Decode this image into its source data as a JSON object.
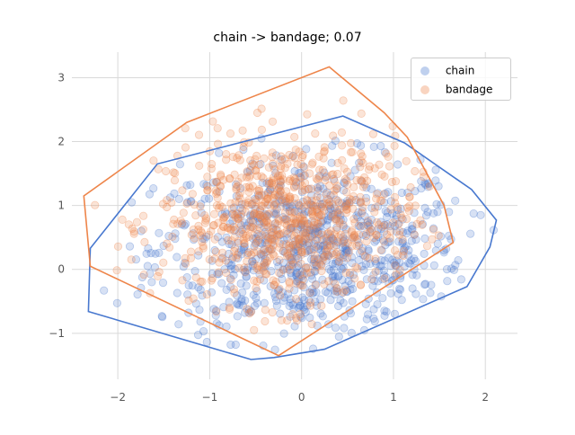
{
  "chart_data": {
    "type": "scatter",
    "title": "chain -> bandage; 0.07",
    "xlabel": "",
    "ylabel": "",
    "xlim": [
      -2.5,
      2.35
    ],
    "ylim": [
      -1.72,
      3.4
    ],
    "x_ticks": [
      -2,
      -1,
      0,
      1,
      2
    ],
    "y_ticks": [
      -1,
      0,
      1,
      2,
      3
    ],
    "x_tick_labels": [
      "−2",
      "−1",
      "0",
      "1",
      "2"
    ],
    "y_tick_labels": [
      "−1",
      "0",
      "1",
      "2",
      "3"
    ],
    "grid": true,
    "legend_position": "top-right",
    "series": [
      {
        "name": "chain",
        "color": "#4878cf",
        "point_count": 800,
        "center": [
          0.1,
          0.3
        ],
        "spread": [
          0.85,
          0.7
        ],
        "hull": [
          [
            -2.32,
            -0.66
          ],
          [
            -0.55,
            -1.41
          ],
          [
            -0.3,
            -1.38
          ],
          [
            0.25,
            -1.25
          ],
          [
            1.8,
            -0.27
          ],
          [
            2.05,
            0.35
          ],
          [
            2.12,
            0.77
          ],
          [
            1.85,
            1.25
          ],
          [
            1.12,
            1.98
          ],
          [
            0.45,
            2.4
          ],
          [
            -1.57,
            1.65
          ],
          [
            -2.3,
            0.33
          ]
        ]
      },
      {
        "name": "bandage",
        "color": "#ee854a",
        "point_count": 800,
        "center": [
          -0.15,
          0.75
        ],
        "spread": [
          0.7,
          0.65
        ],
        "hull": [
          [
            -2.37,
            1.15
          ],
          [
            -2.3,
            0.05
          ],
          [
            -0.25,
            -1.35
          ],
          [
            1.65,
            0.42
          ],
          [
            1.55,
            1.0
          ],
          [
            1.15,
            2.07
          ],
          [
            0.9,
            2.45
          ],
          [
            0.3,
            3.17
          ],
          [
            -1.25,
            2.3
          ]
        ]
      }
    ]
  }
}
